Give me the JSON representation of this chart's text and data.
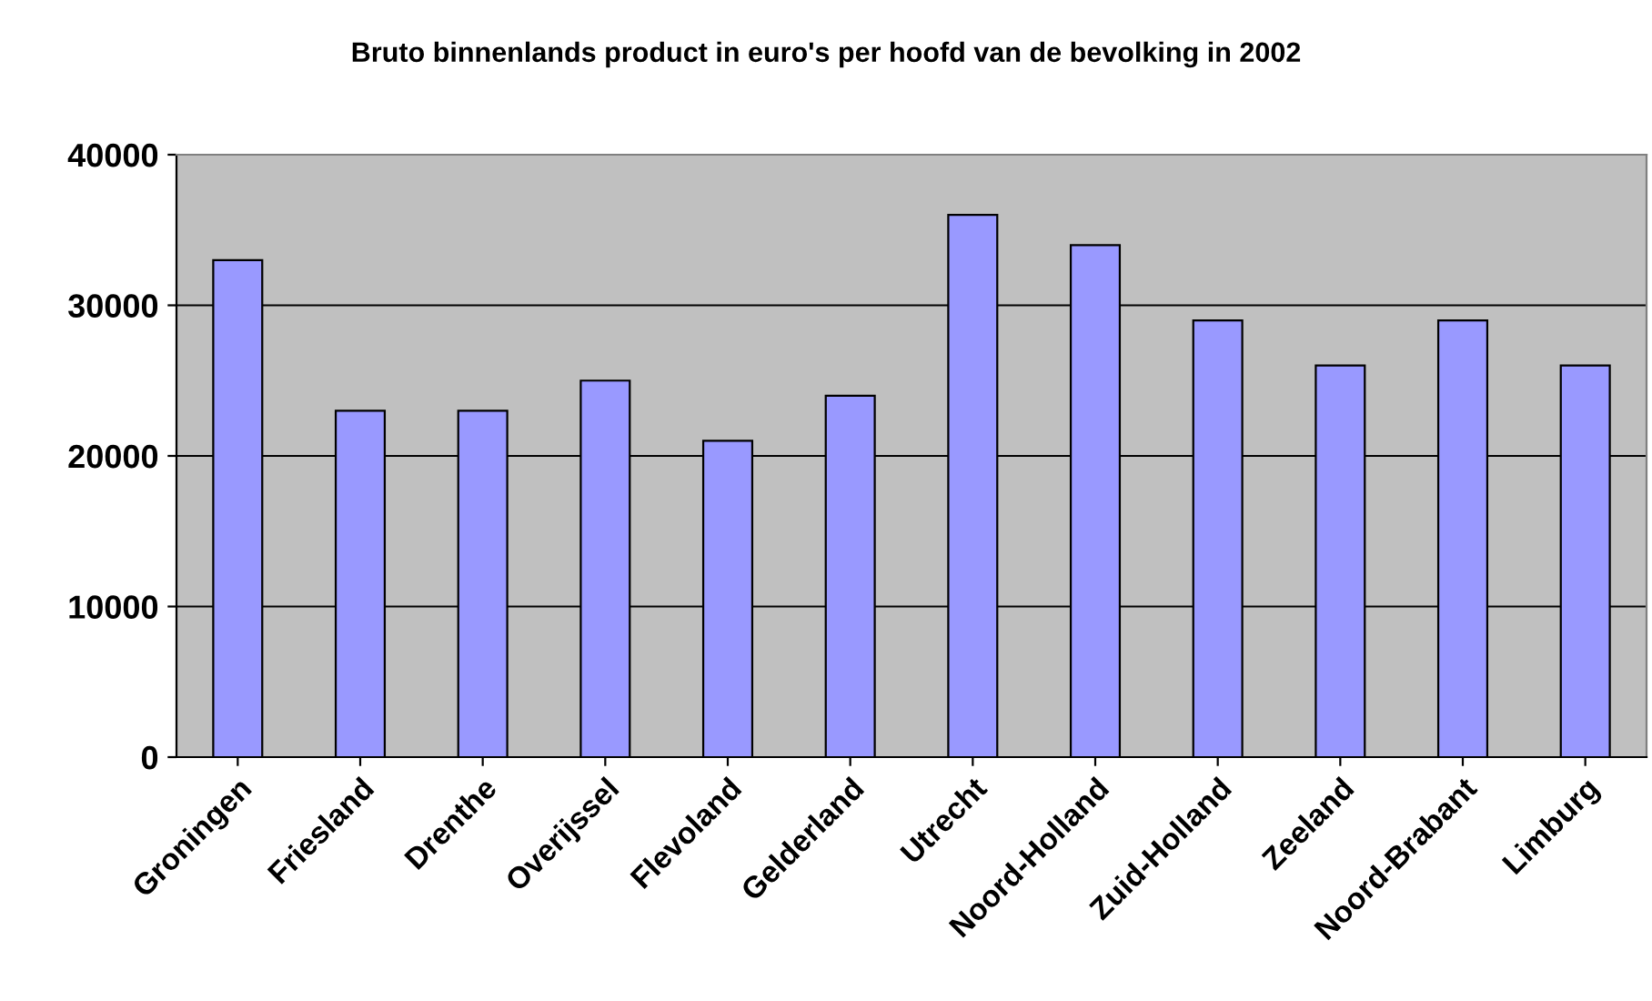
{
  "chart_data": {
    "type": "bar",
    "title": "Bruto binnenlands product in euro's per hoofd van de bevolking in 2002",
    "categories": [
      "Groningen",
      "Friesland",
      "Drenthe",
      "Overijssel",
      "Flevoland",
      "Gelderland",
      "Utrecht",
      "Noord-Holland",
      "Zuid-Holland",
      "Zeeland",
      "Noord-Brabant",
      "Limburg"
    ],
    "values": [
      33000,
      23000,
      23000,
      25000,
      21000,
      24000,
      36000,
      34000,
      29000,
      26000,
      29000,
      26000
    ],
    "color": "#9999ff",
    "ylim": [
      0,
      40000
    ],
    "yticks": [
      0,
      10000,
      20000,
      30000,
      40000
    ],
    "grid": "y",
    "legend": false
  }
}
